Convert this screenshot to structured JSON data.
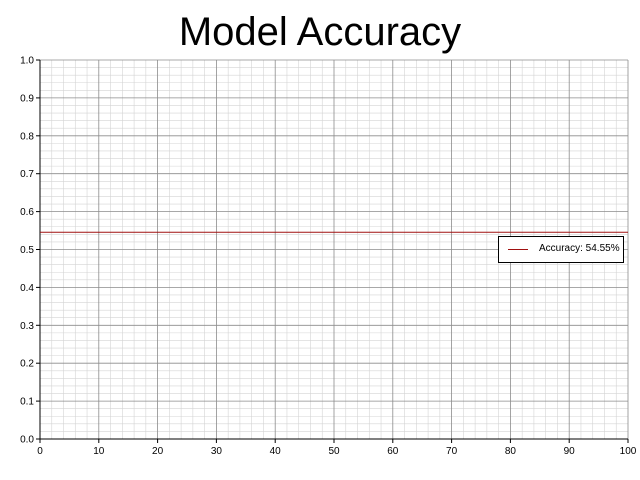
{
  "chart_data": {
    "type": "line",
    "title": "Model Accuracy",
    "xlabel": "",
    "ylabel": "",
    "xlim": [
      0,
      100
    ],
    "ylim": [
      0,
      1.0
    ],
    "x_ticks": [
      "0",
      "10",
      "20",
      "30",
      "40",
      "50",
      "60",
      "70",
      "80",
      "90",
      "100"
    ],
    "y_ticks": [
      "0.0",
      "0.1",
      "0.2",
      "0.3",
      "0.4",
      "0.5",
      "0.6",
      "0.7",
      "0.8",
      "0.9",
      "1.0"
    ],
    "grid": true,
    "legend_position": "right",
    "series": [
      {
        "name": "Accuracy: 54.55%",
        "color": "#a01010",
        "x": [
          0,
          100
        ],
        "y": [
          0.5455,
          0.5455
        ]
      }
    ]
  }
}
